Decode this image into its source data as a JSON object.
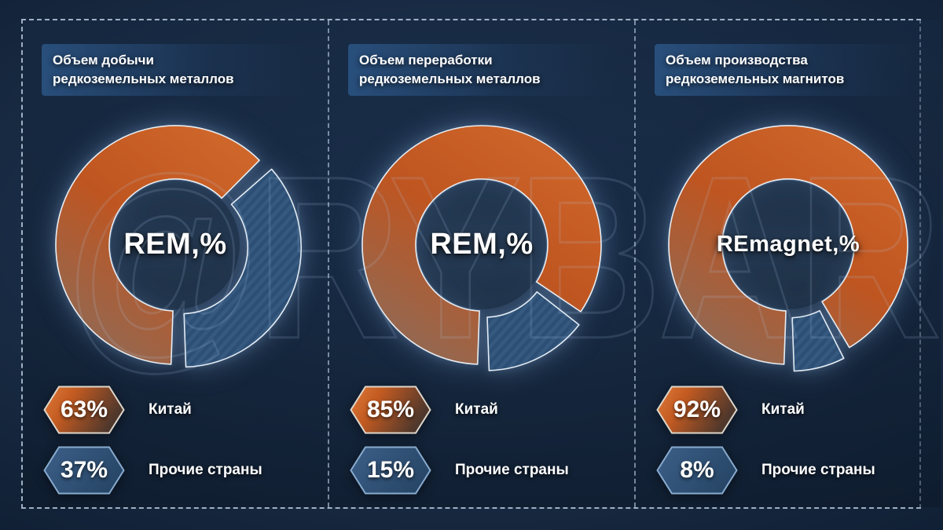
{
  "watermark": {
    "text": "@RYBAR"
  },
  "chart_data": [
    {
      "type": "pie",
      "title": "Объем добычи редкоземельных металлов",
      "title_lines": [
        "Объем добычи",
        "редкоземельных металлов"
      ],
      "center_label": "REM,%",
      "labels": [
        "Китай",
        "Прочие страны"
      ],
      "values": [
        63,
        37
      ],
      "badges": [
        "63%",
        "37%"
      ],
      "colors": [
        "#c25a23",
        "#2e5076"
      ],
      "layout": {
        "start_angle_deg": 180,
        "direction": "clockwise",
        "exploded_slice": "Прочие страны"
      }
    },
    {
      "type": "pie",
      "title": "Объем переработки редкоземельных металлов",
      "title_lines": [
        "Объем переработки",
        "редкоземельных металлов"
      ],
      "center_label": "REM,%",
      "labels": [
        "Китай",
        "Прочие страны"
      ],
      "values": [
        85,
        15
      ],
      "badges": [
        "85%",
        "15%"
      ],
      "colors": [
        "#c25a23",
        "#2e5076"
      ],
      "layout": {
        "start_angle_deg": 180,
        "direction": "clockwise",
        "exploded_slice": "Прочие страны"
      }
    },
    {
      "type": "pie",
      "title": "Объем производства редкоземельных магнитов",
      "title_lines": [
        "Объем производства",
        "редкоземельных магнитов"
      ],
      "center_label": "REmagnet,%",
      "labels": [
        "Китай",
        "Прочие страны"
      ],
      "values": [
        92,
        8
      ],
      "badges": [
        "92%",
        "8%"
      ],
      "colors": [
        "#c25a23",
        "#2e5076"
      ],
      "layout": {
        "start_angle_deg": 180,
        "direction": "clockwise",
        "exploded_slice": "Прочие страны"
      }
    }
  ]
}
